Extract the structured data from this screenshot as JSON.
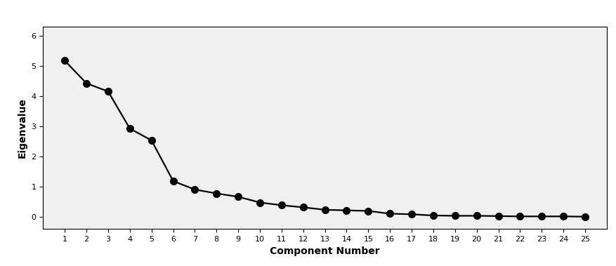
{
  "chart_data": {
    "type": "line",
    "x_label": "Component Number",
    "y_label": "Eigenvalue",
    "x": [
      1,
      2,
      3,
      4,
      5,
      6,
      7,
      8,
      9,
      10,
      11,
      12,
      13,
      14,
      15,
      16,
      17,
      18,
      19,
      20,
      21,
      22,
      23,
      24,
      25
    ],
    "values": [
      5.17,
      4.42,
      4.15,
      2.92,
      2.53,
      1.18,
      0.9,
      0.77,
      0.66,
      0.47,
      0.38,
      0.31,
      0.23,
      0.21,
      0.19,
      0.1,
      0.08,
      0.04,
      0.03,
      0.03,
      0.02,
      0.01,
      0.01,
      0.01,
      0.0
    ],
    "color": "#000000",
    "marker": "o",
    "line_style": "solid",
    "xlim": [
      0,
      26
    ],
    "xticks": [
      1,
      2,
      3,
      4,
      5,
      6,
      7,
      8,
      9,
      10,
      11,
      12,
      13,
      14,
      15,
      16,
      17,
      18,
      19,
      20,
      21,
      22,
      23,
      24,
      25
    ],
    "ylim": [
      -0.4,
      6.3
    ],
    "yticks": [
      0,
      1,
      2,
      3,
      4,
      5,
      6
    ],
    "grid": false
  }
}
